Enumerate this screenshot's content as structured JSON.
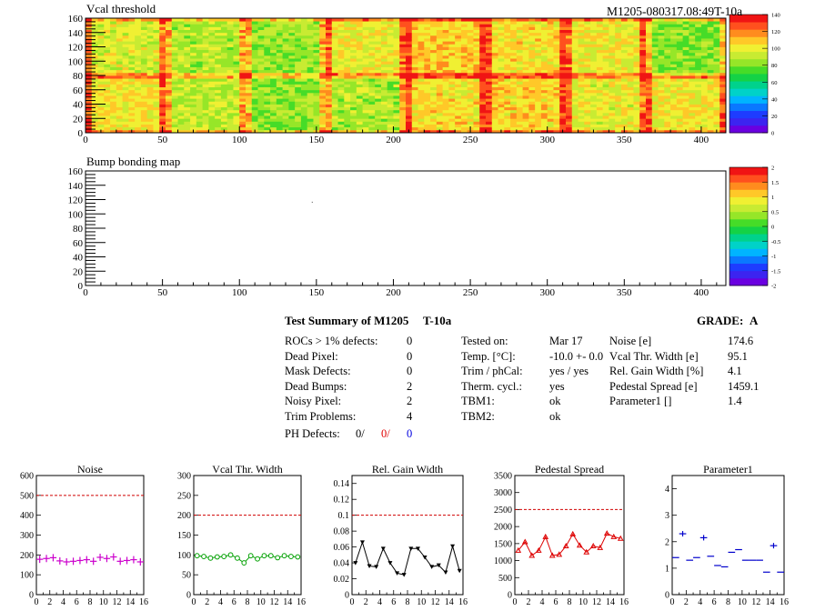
{
  "header": {
    "run_id": "M1205-080317.08:49T-10a"
  },
  "palette_colors": [
    "#6a00e0",
    "#3c24f0",
    "#1e3cff",
    "#0a78ff",
    "#00b4ff",
    "#00d2c8",
    "#00d28c",
    "#14d246",
    "#46dc28",
    "#96e628",
    "#c8eb32",
    "#f0f032",
    "#ffc828",
    "#ff8c1e",
    "#ff501e",
    "#f01414"
  ],
  "chart_data": [
    {
      "type": "heatmap",
      "title": "Vcal threshold",
      "xlim": [
        0,
        416
      ],
      "ylim": [
        0,
        160
      ],
      "xticks": [
        "0",
        "50",
        "100",
        "150",
        "200",
        "250",
        "300",
        "350",
        "400"
      ],
      "yticks": [
        "0",
        "20",
        "40",
        "60",
        "80",
        "100",
        "120",
        "140",
        "160"
      ],
      "z_range": [
        0,
        140
      ],
      "z_ticks": [
        "0",
        "20",
        "40",
        "60",
        "80",
        "100",
        "120",
        "140"
      ],
      "roc_grid": {
        "columns": 8,
        "rows": 2,
        "col_width": 52,
        "row_height": 80
      },
      "roc_mean_levels": {
        "top_row": [
          95,
          88,
          85,
          100,
          108,
          104,
          100,
          82
        ],
        "bottom_row": [
          102,
          90,
          84,
          88,
          104,
          106,
          98,
          100
        ]
      }
    },
    {
      "type": "heatmap",
      "title": "Bump bonding map",
      "xlim": [
        0,
        416
      ],
      "ylim": [
        0,
        160
      ],
      "xticks": [
        "0",
        "50",
        "100",
        "150",
        "200",
        "250",
        "300",
        "350",
        "400"
      ],
      "yticks": [
        "0",
        "20",
        "40",
        "60",
        "80",
        "100",
        "120",
        "140",
        "160"
      ],
      "z_range": [
        -2,
        2
      ],
      "z_ticks": [
        "-2",
        "-1.5",
        "-1",
        "-0.5",
        "0",
        "0.5",
        "1",
        "1.5",
        "2"
      ],
      "points": [
        [
          147,
          117
        ]
      ]
    },
    {
      "type": "scatter",
      "title": "Noise",
      "x": [
        0,
        1,
        2,
        3,
        4,
        5,
        6,
        7,
        8,
        9,
        10,
        11,
        12,
        13,
        14,
        15
      ],
      "values": [
        178,
        182,
        186,
        170,
        165,
        168,
        172,
        176,
        168,
        188,
        182,
        190,
        168,
        172,
        176,
        165
      ],
      "xlim": [
        0,
        16
      ],
      "ylim": [
        0,
        600
      ],
      "reference_line": 500,
      "xticks": [
        "0",
        "2",
        "4",
        "6",
        "8",
        "10",
        "12",
        "14",
        "16"
      ],
      "yticks": [
        "0",
        "100",
        "200",
        "300",
        "400",
        "500",
        "600"
      ],
      "color": "#cc00cc",
      "marker": "cross"
    },
    {
      "type": "line",
      "title": "Vcal Thr. Width",
      "x": [
        0,
        1,
        2,
        3,
        4,
        5,
        6,
        7,
        8,
        9,
        10,
        11,
        12,
        13,
        14,
        15
      ],
      "values": [
        98,
        96,
        92,
        95,
        96,
        100,
        92,
        80,
        98,
        90,
        98,
        98,
        93,
        98,
        96,
        95
      ],
      "xlim": [
        0,
        16
      ],
      "ylim": [
        0,
        300
      ],
      "reference_line": 200,
      "xticks": [
        "0",
        "2",
        "4",
        "6",
        "8",
        "10",
        "12",
        "14",
        "16"
      ],
      "yticks": [
        "0",
        "50",
        "100",
        "150",
        "200",
        "250",
        "300"
      ],
      "color": "#00a000",
      "marker": "circle"
    },
    {
      "type": "line",
      "title": "Rel. Gain Width",
      "x": [
        0,
        1,
        2,
        3,
        4,
        5,
        6,
        7,
        8,
        9,
        10,
        11,
        12,
        13,
        14,
        15
      ],
      "values": [
        0.04,
        0.066,
        0.036,
        0.035,
        0.058,
        0.04,
        0.027,
        0.025,
        0.058,
        0.058,
        0.047,
        0.035,
        0.037,
        0.028,
        0.061,
        0.03
      ],
      "xlim": [
        0,
        16
      ],
      "ylim": [
        0,
        0.15
      ],
      "reference_line": 0.1,
      "xticks": [
        "0",
        "2",
        "4",
        "6",
        "8",
        "10",
        "12",
        "14",
        "16"
      ],
      "yticks": [
        "0",
        "0.02",
        "0.04",
        "0.06",
        "0.08",
        "0.1",
        "0.12",
        "0.14"
      ],
      "color": "#000000",
      "marker": "triangle"
    },
    {
      "type": "line",
      "title": "Pedestal Spread",
      "x": [
        0,
        1,
        2,
        3,
        4,
        5,
        6,
        7,
        8,
        9,
        10,
        11,
        12,
        13,
        14,
        15
      ],
      "values": [
        1300,
        1550,
        1150,
        1300,
        1700,
        1150,
        1180,
        1430,
        1780,
        1450,
        1250,
        1430,
        1380,
        1800,
        1700,
        1650
      ],
      "xlim": [
        0,
        16
      ],
      "ylim": [
        0,
        3500
      ],
      "reference_line": 2500,
      "xticks": [
        "0",
        "2",
        "4",
        "6",
        "8",
        "10",
        "12",
        "14",
        "16"
      ],
      "yticks": [
        "0",
        "500",
        "1000",
        "1500",
        "2000",
        "2500",
        "3000",
        "3500"
      ],
      "color": "#dd0000",
      "marker": "triangle-open"
    },
    {
      "type": "scatter",
      "title": "Parameter1",
      "x": [
        0,
        1,
        2,
        3,
        4,
        5,
        6,
        7,
        8,
        9,
        10,
        11,
        12,
        13,
        14,
        15
      ],
      "values": [
        1.4,
        2.3,
        1.3,
        1.4,
        2.15,
        1.45,
        1.1,
        1.05,
        1.6,
        1.7,
        1.3,
        1.3,
        1.3,
        0.85,
        1.85,
        0.85
      ],
      "xlim": [
        0,
        16
      ],
      "ylim": [
        0,
        4.5
      ],
      "xticks": [
        "0",
        "2",
        "4",
        "6",
        "8",
        "10",
        "12",
        "14",
        "16"
      ],
      "yticks": [
        "0",
        "1",
        "2",
        "3",
        "4"
      ],
      "color": "#0000cc",
      "marker": "cross"
    }
  ],
  "summary": {
    "title": "Test Summary of M1205",
    "temp_label": "T-10a",
    "grade_label": "GRADE:",
    "grade_value": "A",
    "defects": [
      {
        "label": "ROCs > 1% defects:",
        "value": "0"
      },
      {
        "label": "Dead Pixel:",
        "value": "0"
      },
      {
        "label": "Mask Defects:",
        "value": "0"
      },
      {
        "label": "Dead Bumps:",
        "value": "2"
      },
      {
        "label": "Noisy Pixel:",
        "value": "2"
      },
      {
        "label": "Trim Problems:",
        "value": "4"
      }
    ],
    "ph_defects": {
      "label": "PH Defects:",
      "v1": "0/",
      "v2": "0/",
      "v3": "0"
    },
    "conditions": [
      {
        "label": "Tested on:",
        "value": "Mar 17"
      },
      {
        "label": "Temp. [°C]:",
        "value": "-10.0 +- 0.0"
      },
      {
        "label": "Trim / phCal:",
        "value": "yes / yes"
      },
      {
        "label": "Therm. cycl.:",
        "value": "yes"
      },
      {
        "label": "TBM1:",
        "value": "ok"
      },
      {
        "label": "TBM2:",
        "value": "ok"
      }
    ],
    "results": [
      {
        "label": "Noise [e]",
        "value": "174.6"
      },
      {
        "label": "Vcal Thr. Width [e]",
        "value": "95.1"
      },
      {
        "label": "Rel. Gain Width [%]",
        "value": "4.1"
      },
      {
        "label": "Pedestal Spread [e]",
        "value": "1459.1"
      },
      {
        "label": "Parameter1 []",
        "value": "1.4"
      }
    ]
  }
}
